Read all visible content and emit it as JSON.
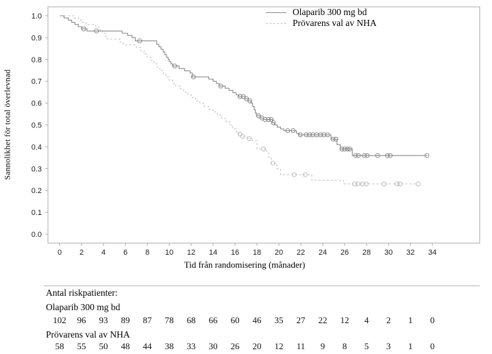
{
  "chart_data": {
    "type": "line",
    "subtype": "kaplan-meier-survival",
    "title": "",
    "xlabel": "Tid från randomisering (månader)",
    "ylabel": "Sannolikhet för total överlevnad",
    "xlim": [
      0,
      38
    ],
    "ylim": [
      0.0,
      1.0
    ],
    "x_ticks": [
      0,
      2,
      4,
      6,
      8,
      10,
      12,
      14,
      16,
      18,
      20,
      22,
      24,
      26,
      28,
      30,
      32,
      34
    ],
    "y_ticks": [
      0.0,
      0.1,
      0.2,
      0.3,
      0.4,
      0.5,
      0.6,
      0.7,
      0.8,
      0.9,
      1.0
    ],
    "grid": false,
    "frame_color": "#ababab",
    "legend_position": "top-center-right",
    "series": [
      {
        "id": "olaparib",
        "name": "Olaparib 300 mg bd",
        "style": "solid",
        "color": "#8a8a8a",
        "censor_color": "#8a8a8a",
        "end": 33.55,
        "steps": [
          [
            0,
            1.0
          ],
          [
            0.4,
            0.99
          ],
          [
            0.8,
            0.98
          ],
          [
            1.1,
            0.97
          ],
          [
            1.4,
            0.96
          ],
          [
            1.7,
            0.95
          ],
          [
            2.0,
            0.94
          ],
          [
            2.5,
            0.93
          ],
          [
            5.7,
            0.92
          ],
          [
            6.2,
            0.91
          ],
          [
            6.6,
            0.9
          ],
          [
            6.9,
            0.885
          ],
          [
            8.85,
            0.87
          ],
          [
            9.05,
            0.858
          ],
          [
            9.25,
            0.846
          ],
          [
            9.45,
            0.834
          ],
          [
            9.6,
            0.822
          ],
          [
            9.75,
            0.81
          ],
          [
            9.9,
            0.8
          ],
          [
            10.0,
            0.79
          ],
          [
            10.15,
            0.78
          ],
          [
            10.3,
            0.77
          ],
          [
            10.9,
            0.758
          ],
          [
            11.4,
            0.748
          ],
          [
            11.9,
            0.738
          ],
          [
            12.1,
            0.72
          ],
          [
            13.6,
            0.71
          ],
          [
            14.0,
            0.7
          ],
          [
            14.3,
            0.69
          ],
          [
            14.55,
            0.678
          ],
          [
            15.1,
            0.668
          ],
          [
            15.45,
            0.658
          ],
          [
            15.8,
            0.648
          ],
          [
            16.1,
            0.638
          ],
          [
            16.35,
            0.63
          ],
          [
            16.9,
            0.62
          ],
          [
            17.2,
            0.61
          ],
          [
            17.45,
            0.6
          ],
          [
            17.6,
            0.585
          ],
          [
            17.75,
            0.57
          ],
          [
            17.85,
            0.555
          ],
          [
            17.95,
            0.542
          ],
          [
            18.3,
            0.532
          ],
          [
            18.6,
            0.525
          ],
          [
            19.4,
            0.51
          ],
          [
            19.6,
            0.5
          ],
          [
            19.85,
            0.49
          ],
          [
            20.15,
            0.482
          ],
          [
            20.45,
            0.474
          ],
          [
            21.6,
            0.462
          ],
          [
            21.85,
            0.455
          ],
          [
            24.75,
            0.435
          ],
          [
            25.3,
            0.41
          ],
          [
            25.6,
            0.39
          ],
          [
            26.7,
            0.36
          ]
        ],
        "censors": [
          [
            2.2,
            0.94
          ],
          [
            3.35,
            0.93
          ],
          [
            7.3,
            0.885
          ],
          [
            10.5,
            0.77
          ],
          [
            12.2,
            0.72
          ],
          [
            14.7,
            0.678
          ],
          [
            16.45,
            0.63
          ],
          [
            16.75,
            0.63
          ],
          [
            17.05,
            0.62
          ],
          [
            17.35,
            0.61
          ],
          [
            18.15,
            0.542
          ],
          [
            18.45,
            0.532
          ],
          [
            18.75,
            0.525
          ],
          [
            19.05,
            0.525
          ],
          [
            19.3,
            0.525
          ],
          [
            19.5,
            0.51
          ],
          [
            20.8,
            0.474
          ],
          [
            21.3,
            0.474
          ],
          [
            21.95,
            0.455
          ],
          [
            22.5,
            0.455
          ],
          [
            22.8,
            0.455
          ],
          [
            23.1,
            0.455
          ],
          [
            23.45,
            0.455
          ],
          [
            23.8,
            0.455
          ],
          [
            24.1,
            0.455
          ],
          [
            24.45,
            0.455
          ],
          [
            24.95,
            0.435
          ],
          [
            25.2,
            0.435
          ],
          [
            25.75,
            0.39
          ],
          [
            26.0,
            0.39
          ],
          [
            26.25,
            0.39
          ],
          [
            26.45,
            0.39
          ],
          [
            27.0,
            0.36
          ],
          [
            27.25,
            0.36
          ],
          [
            27.8,
            0.36
          ],
          [
            28.05,
            0.36
          ],
          [
            29.0,
            0.36
          ],
          [
            29.9,
            0.36
          ],
          [
            30.15,
            0.36
          ],
          [
            33.5,
            0.36
          ]
        ]
      },
      {
        "id": "nha",
        "name": "Prövarens val av NHA",
        "style": "dashed",
        "color": "#c4c4c4",
        "censor_color": "#bdbdbd",
        "end": 32.7,
        "steps": [
          [
            0,
            1.0
          ],
          [
            1.3,
            0.99
          ],
          [
            1.75,
            0.98
          ],
          [
            2.05,
            0.97
          ],
          [
            2.4,
            0.96
          ],
          [
            3.3,
            0.948
          ],
          [
            3.6,
            0.935
          ],
          [
            3.9,
            0.92
          ],
          [
            4.15,
            0.905
          ],
          [
            4.35,
            0.893
          ],
          [
            5.5,
            0.88
          ],
          [
            5.8,
            0.867
          ],
          [
            7.0,
            0.855
          ],
          [
            7.35,
            0.84
          ],
          [
            7.7,
            0.825
          ],
          [
            8.0,
            0.81
          ],
          [
            8.3,
            0.795
          ],
          [
            8.6,
            0.78
          ],
          [
            8.9,
            0.765
          ],
          [
            9.15,
            0.75
          ],
          [
            9.45,
            0.735
          ],
          [
            9.7,
            0.72
          ],
          [
            10.0,
            0.705
          ],
          [
            10.3,
            0.69
          ],
          [
            10.6,
            0.678
          ],
          [
            11.0,
            0.665
          ],
          [
            11.3,
            0.65
          ],
          [
            11.7,
            0.638
          ],
          [
            12.0,
            0.625
          ],
          [
            12.4,
            0.61
          ],
          [
            12.8,
            0.598
          ],
          [
            13.2,
            0.585
          ],
          [
            13.6,
            0.572
          ],
          [
            14.0,
            0.56
          ],
          [
            14.4,
            0.545
          ],
          [
            14.8,
            0.53
          ],
          [
            15.2,
            0.515
          ],
          [
            15.5,
            0.5
          ],
          [
            15.8,
            0.482
          ],
          [
            16.1,
            0.468
          ],
          [
            16.35,
            0.458
          ],
          [
            16.6,
            0.448
          ],
          [
            17.1,
            0.437
          ],
          [
            17.6,
            0.428
          ],
          [
            18.0,
            0.39
          ],
          [
            18.9,
            0.37
          ],
          [
            19.1,
            0.35
          ],
          [
            19.3,
            0.325
          ],
          [
            19.8,
            0.3
          ],
          [
            20.15,
            0.272
          ],
          [
            23.0,
            0.247
          ],
          [
            25.9,
            0.23
          ]
        ],
        "censors": [
          [
            16.45,
            0.458
          ],
          [
            16.7,
            0.448
          ],
          [
            17.3,
            0.437
          ],
          [
            18.6,
            0.39
          ],
          [
            19.45,
            0.325
          ],
          [
            21.4,
            0.272
          ],
          [
            22.4,
            0.272
          ],
          [
            26.9,
            0.23
          ],
          [
            27.2,
            0.23
          ],
          [
            27.6,
            0.23
          ],
          [
            27.95,
            0.23
          ],
          [
            29.6,
            0.23
          ],
          [
            30.8,
            0.23
          ],
          [
            31.05,
            0.23
          ],
          [
            32.7,
            0.23
          ]
        ]
      }
    ]
  },
  "risk_table": {
    "header": "Antal riskpatienter:",
    "time_points": [
      0,
      2,
      4,
      6,
      8,
      10,
      12,
      14,
      16,
      18,
      20,
      22,
      24,
      26,
      28,
      30,
      32,
      34
    ],
    "groups": [
      {
        "label": "Olaparib 300 mg bd",
        "values": [
          102,
          96,
          93,
          89,
          87,
          78,
          68,
          66,
          60,
          46,
          35,
          27,
          22,
          12,
          4,
          2,
          1,
          0
        ]
      },
      {
        "label": "Prövarens val av NHA",
        "values": [
          58,
          55,
          50,
          48,
          44,
          38,
          33,
          30,
          26,
          20,
          12,
          11,
          9,
          8,
          5,
          3,
          1,
          0
        ]
      }
    ]
  }
}
